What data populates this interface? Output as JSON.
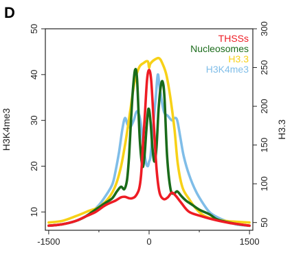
{
  "panel_label": "D",
  "colors": {
    "THSSs": "#ee1c24",
    "Nucleosomes": "#1a6b1a",
    "H3.3": "#f7d117",
    "H3K4me3": "#7fbde8"
  },
  "chart_data": {
    "type": "line",
    "xlabel": "",
    "ylabel": "H3K4me3",
    "y2label": "H3.3",
    "xlim": [
      -1550,
      1550
    ],
    "ylim": [
      6,
      50
    ],
    "y2lim": [
      40,
      300
    ],
    "x_ticks": [
      -1500,
      0,
      1500
    ],
    "x_tick_labels": [
      "-1500",
      "0",
      "1500"
    ],
    "x_minor_ticks": [
      -750,
      750
    ],
    "y_ticks": [
      10,
      20,
      30,
      40,
      50
    ],
    "y2_ticks": [
      50,
      100,
      150,
      200,
      250,
      300
    ],
    "legend": {
      "position": "top-right",
      "entries": [
        "THSSs",
        "Nucleosomes",
        "H3.3",
        "H3K4me3"
      ]
    },
    "series": [
      {
        "name": "H3K4me3",
        "axis": "left",
        "points": [
          [
            -1500,
            7.0
          ],
          [
            -1300,
            7.3
          ],
          [
            -1100,
            8.0
          ],
          [
            -900,
            9.5
          ],
          [
            -750,
            11.5
          ],
          [
            -650,
            13.5
          ],
          [
            -550,
            16
          ],
          [
            -500,
            19
          ],
          [
            -450,
            23
          ],
          [
            -400,
            28
          ],
          [
            -360,
            30.5
          ],
          [
            -320,
            29
          ],
          [
            -280,
            28.5
          ],
          [
            -230,
            30
          ],
          [
            -180,
            32
          ],
          [
            -130,
            30
          ],
          [
            -90,
            25
          ],
          [
            -50,
            21
          ],
          [
            -20,
            20
          ],
          [
            0,
            21
          ],
          [
            20,
            22
          ],
          [
            50,
            27
          ],
          [
            100,
            35
          ],
          [
            130,
            40
          ],
          [
            160,
            37
          ],
          [
            220,
            32
          ],
          [
            280,
            31
          ],
          [
            340,
            30
          ],
          [
            380,
            30.5
          ],
          [
            420,
            30
          ],
          [
            470,
            26
          ],
          [
            520,
            22
          ],
          [
            600,
            18
          ],
          [
            700,
            14.5
          ],
          [
            800,
            12
          ],
          [
            900,
            10
          ],
          [
            1000,
            9
          ],
          [
            1150,
            8
          ],
          [
            1300,
            7.3
          ],
          [
            1500,
            7.0
          ]
        ]
      },
      {
        "name": "H3.3",
        "axis": "right",
        "points": [
          [
            -1500,
            50
          ],
          [
            -1300,
            52
          ],
          [
            -1100,
            58
          ],
          [
            -900,
            65
          ],
          [
            -750,
            70
          ],
          [
            -600,
            82
          ],
          [
            -500,
            98
          ],
          [
            -420,
            122
          ],
          [
            -350,
            155
          ],
          [
            -280,
            195
          ],
          [
            -220,
            230
          ],
          [
            -150,
            250
          ],
          [
            -80,
            256
          ],
          [
            -20,
            258
          ],
          [
            0,
            250
          ],
          [
            20,
            255
          ],
          [
            80,
            260
          ],
          [
            150,
            262
          ],
          [
            200,
            255
          ],
          [
            260,
            240
          ],
          [
            320,
            210
          ],
          [
            380,
            170
          ],
          [
            430,
            125
          ],
          [
            500,
            95
          ],
          [
            600,
            80
          ],
          [
            700,
            68
          ],
          [
            800,
            60
          ],
          [
            900,
            56
          ],
          [
            1000,
            54
          ],
          [
            1150,
            52
          ],
          [
            1300,
            51
          ],
          [
            1500,
            50
          ]
        ]
      },
      {
        "name": "Nucleosomes",
        "axis": "left",
        "points": [
          [
            -1500,
            7.0
          ],
          [
            -1300,
            7.3
          ],
          [
            -1100,
            8.0
          ],
          [
            -950,
            9.0
          ],
          [
            -850,
            10
          ],
          [
            -750,
            11
          ],
          [
            -650,
            12
          ],
          [
            -550,
            13
          ],
          [
            -480,
            14.5
          ],
          [
            -420,
            15.5
          ],
          [
            -370,
            15
          ],
          [
            -330,
            17
          ],
          [
            -300,
            22
          ],
          [
            -270,
            30
          ],
          [
            -240,
            37
          ],
          [
            -210,
            41
          ],
          [
            -180,
            39
          ],
          [
            -140,
            26
          ],
          [
            -100,
            20
          ],
          [
            -70,
            22
          ],
          [
            -40,
            28
          ],
          [
            -10,
            32.5
          ],
          [
            20,
            30
          ],
          [
            50,
            24
          ],
          [
            80,
            21
          ],
          [
            110,
            24
          ],
          [
            140,
            32
          ],
          [
            170,
            37
          ],
          [
            200,
            38.5
          ],
          [
            230,
            35
          ],
          [
            270,
            22
          ],
          [
            320,
            15
          ],
          [
            370,
            14
          ],
          [
            420,
            14.5
          ],
          [
            480,
            13.5
          ],
          [
            550,
            12.5
          ],
          [
            650,
            11.5
          ],
          [
            750,
            10.5
          ],
          [
            900,
            9.5
          ],
          [
            1000,
            8.5
          ],
          [
            1100,
            8
          ],
          [
            1300,
            7.4
          ],
          [
            1500,
            7.0
          ]
        ]
      },
      {
        "name": "THSSs",
        "axis": "left",
        "points": [
          [
            -1500,
            7.0
          ],
          [
            -1300,
            7.3
          ],
          [
            -1100,
            8.0
          ],
          [
            -950,
            9.0
          ],
          [
            -800,
            10
          ],
          [
            -650,
            11.5
          ],
          [
            -500,
            12.5
          ],
          [
            -420,
            13.2
          ],
          [
            -360,
            13.3
          ],
          [
            -300,
            13
          ],
          [
            -250,
            13
          ],
          [
            -200,
            13.5
          ],
          [
            -150,
            15
          ],
          [
            -120,
            18
          ],
          [
            -90,
            25
          ],
          [
            -60,
            32
          ],
          [
            -30,
            39
          ],
          [
            0,
            41
          ],
          [
            30,
            39
          ],
          [
            60,
            32
          ],
          [
            90,
            24
          ],
          [
            120,
            18
          ],
          [
            160,
            14
          ],
          [
            220,
            12.8
          ],
          [
            280,
            13.2
          ],
          [
            340,
            14.2
          ],
          [
            400,
            13.5
          ],
          [
            480,
            12
          ],
          [
            600,
            10
          ],
          [
            800,
            9
          ],
          [
            1000,
            8.2
          ],
          [
            1200,
            7.6
          ],
          [
            1350,
            7.3
          ],
          [
            1500,
            7.0
          ]
        ]
      }
    ]
  }
}
